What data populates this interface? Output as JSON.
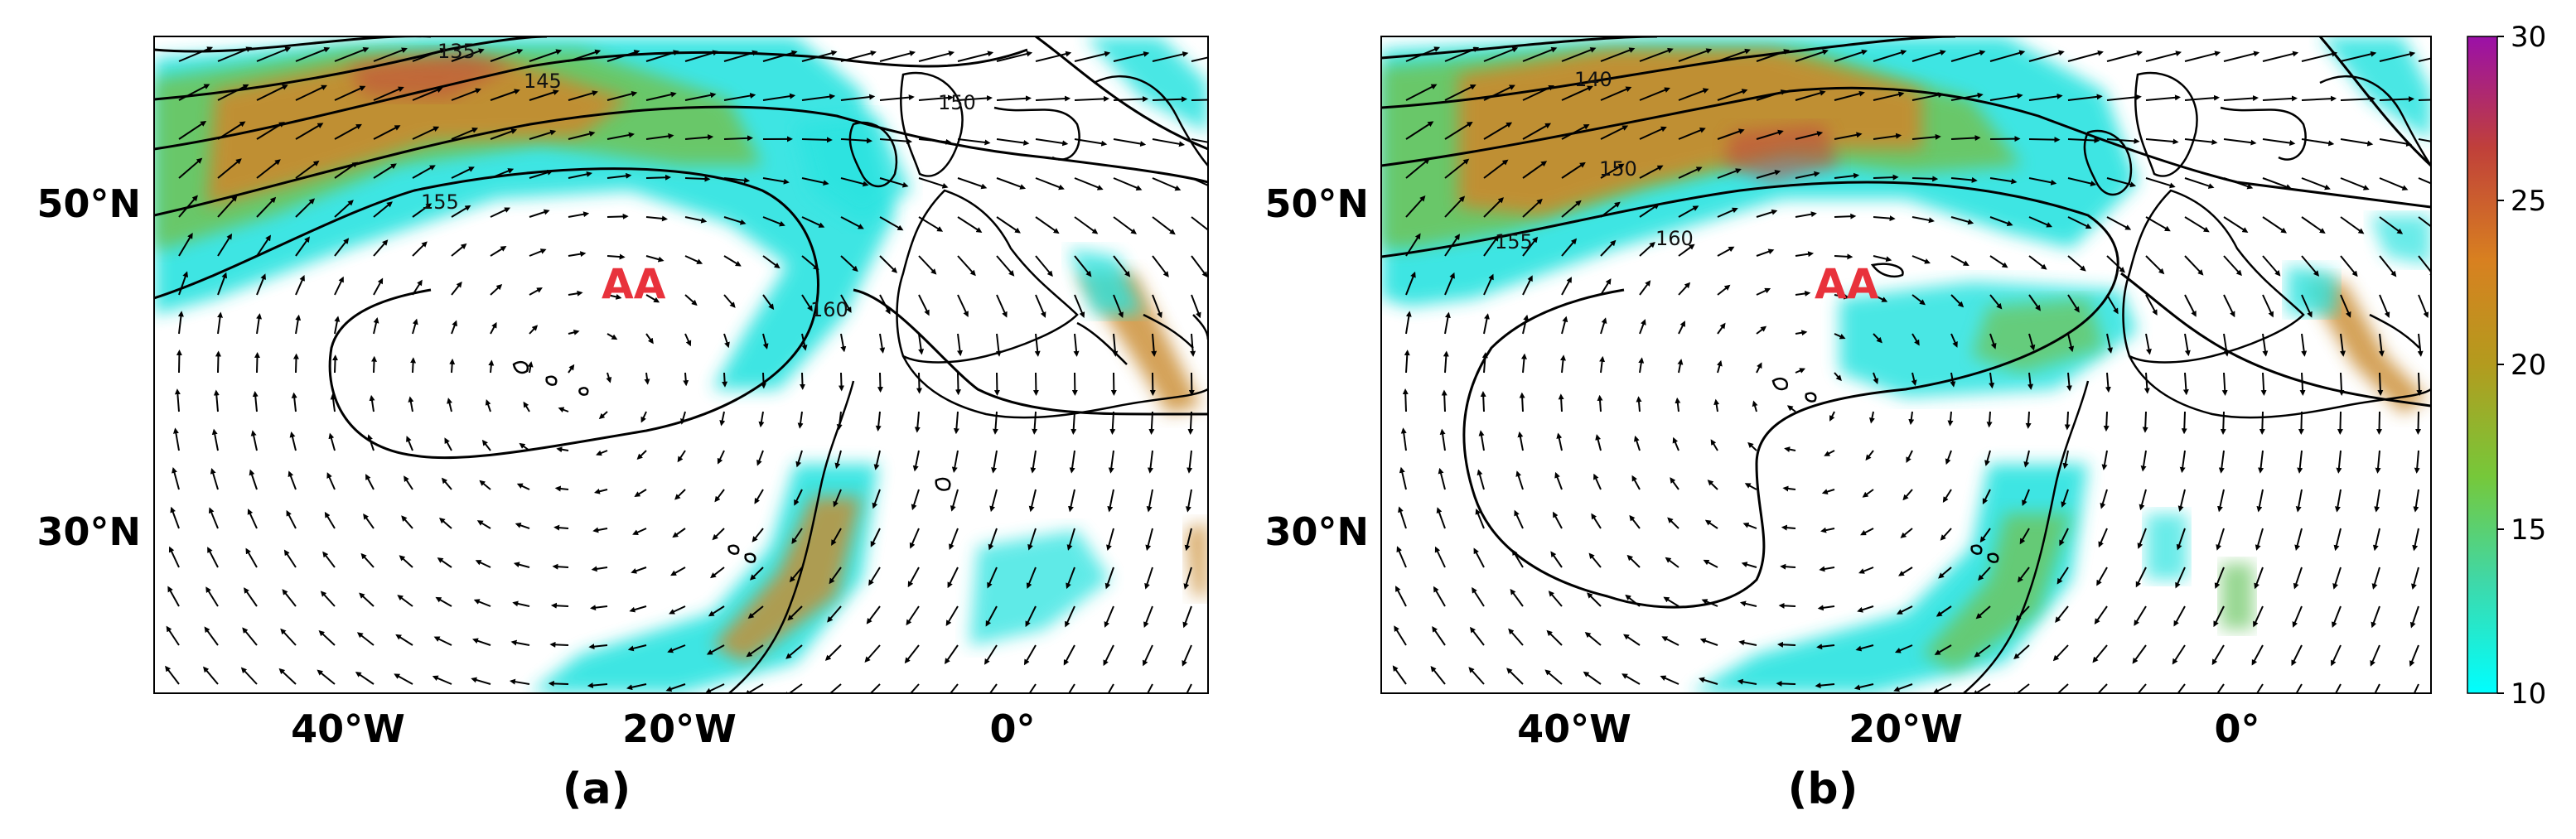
{
  "figure": {
    "colorbar": {
      "ticks": [
        "30",
        "25",
        "20",
        "15",
        "10"
      ],
      "min": 10,
      "max": 30,
      "colors": [
        "#00ffff",
        "#3fd8a8",
        "#76c83a",
        "#b39b1e",
        "#d88020",
        "#c0403a",
        "#9b10a8"
      ]
    },
    "panels": [
      {
        "label": "(a)",
        "feature_label": "AA",
        "lat_ticks": [
          "50°N",
          "30°N"
        ],
        "lon_ticks": [
          "40°W",
          "20°W",
          "0°"
        ],
        "contour_labels": [
          "135",
          "145",
          "150",
          "155",
          "160"
        ]
      },
      {
        "label": "(b)",
        "feature_label": "AA",
        "lat_ticks": [
          "50°N",
          "30°N"
        ],
        "lon_ticks": [
          "40°W",
          "20°W",
          "0°"
        ],
        "contour_labels": [
          "140",
          "150",
          "155",
          "160"
        ]
      }
    ],
    "shading_colors": {
      "low": "#2be3e0",
      "mid": "#6cc664",
      "high": "#c98a2e",
      "peak": "#c24a3e"
    }
  }
}
